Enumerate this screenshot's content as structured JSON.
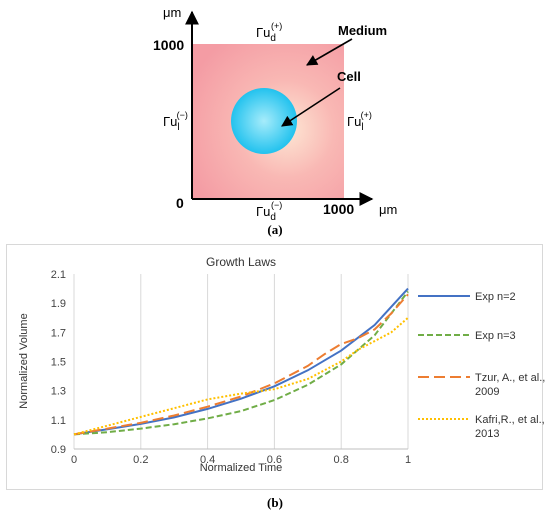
{
  "figure_a": {
    "y_unit": "μm",
    "x_unit": "μm",
    "y_tick_max": "1000",
    "x_tick_max": "1000",
    "origin": "0",
    "label_medium": "Medium",
    "label_cell": "Cell",
    "gamma_top": "Γu",
    "gamma_top_sub": "d",
    "gamma_top_sup": "(+)",
    "gamma_bottom": "Γu",
    "gamma_bottom_sub": "d",
    "gamma_bottom_sup": "(−)",
    "gamma_left": "Γu",
    "gamma_left_sub": "l",
    "gamma_left_sup": "(−)",
    "gamma_right": "Γu",
    "gamma_right_sub": "l",
    "gamma_right_sup": "(+)",
    "colors": {
      "medium": "#f7a9ae",
      "cell": "#2ec6ee"
    },
    "caption": "(a)"
  },
  "chart_data": {
    "type": "line",
    "title": "Growth Laws",
    "xlabel": "Normalized Time",
    "ylabel": "Normalized Volume",
    "xlim": [
      0,
      1
    ],
    "ylim": [
      0.9,
      2.1
    ],
    "xticks": [
      0,
      0.2,
      0.4,
      0.6,
      0.8,
      1
    ],
    "xtick_labels": [
      "0",
      "0.2",
      "0.4",
      "0.6",
      "0.8",
      "1"
    ],
    "yticks": [
      0.9,
      1.1,
      1.3,
      1.5,
      1.7,
      1.9,
      2.1
    ],
    "ytick_labels": [
      "0.9",
      "1.1",
      "1.3",
      "1.5",
      "1.7",
      "1.9",
      "2.1"
    ],
    "grid": "vertical",
    "legend_position": "right",
    "series": [
      {
        "name": "Exp n=2",
        "color": "#4472c4",
        "dash": "solid",
        "x": [
          0,
          0.1,
          0.2,
          0.3,
          0.4,
          0.5,
          0.6,
          0.7,
          0.8,
          0.9,
          1.0
        ],
        "y": [
          1.0,
          1.035,
          1.072,
          1.117,
          1.175,
          1.245,
          1.33,
          1.44,
          1.575,
          1.75,
          2.0
        ]
      },
      {
        "name": "Exp n=3",
        "color": "#70ad47",
        "dash": "dashed",
        "x": [
          0,
          0.1,
          0.2,
          0.3,
          0.4,
          0.5,
          0.6,
          0.7,
          0.8,
          0.9,
          1.0
        ],
        "y": [
          1.0,
          1.015,
          1.04,
          1.07,
          1.11,
          1.16,
          1.235,
          1.34,
          1.48,
          1.68,
          1.98
        ]
      },
      {
        "name": "Tzur, A., et al., 2009",
        "color": "#ed7d31",
        "dash": "longdash",
        "x": [
          0,
          0.1,
          0.2,
          0.3,
          0.4,
          0.5,
          0.6,
          0.7,
          0.75,
          0.8,
          0.85,
          0.9,
          0.95,
          1.0
        ],
        "y": [
          1.0,
          1.04,
          1.08,
          1.13,
          1.19,
          1.26,
          1.35,
          1.47,
          1.55,
          1.62,
          1.66,
          1.72,
          1.83,
          1.96
        ]
      },
      {
        "name": "Kafri,R., et al., 2013",
        "color": "#ffc000",
        "dash": "dotted",
        "x": [
          0,
          0.1,
          0.2,
          0.3,
          0.4,
          0.5,
          0.6,
          0.7,
          0.8,
          0.85,
          0.9,
          0.95,
          1.0
        ],
        "y": [
          1.0,
          1.06,
          1.12,
          1.18,
          1.24,
          1.28,
          1.31,
          1.38,
          1.5,
          1.58,
          1.64,
          1.7,
          1.8
        ]
      }
    ],
    "caption": "(b)"
  }
}
